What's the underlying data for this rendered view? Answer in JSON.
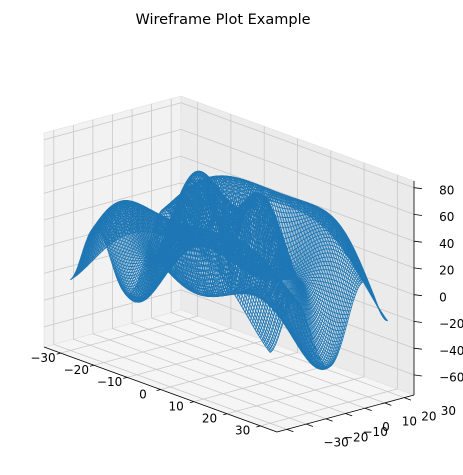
{
  "chart_data": {
    "type": "wireframe",
    "title": "Wireframe Plot Example",
    "x_ticks": [
      -30,
      -20,
      -10,
      0,
      10,
      20,
      30
    ],
    "y_ticks": [
      -30,
      -20,
      -10,
      0,
      10,
      20,
      30
    ],
    "z_ticks": [
      -60,
      -40,
      -20,
      0,
      20,
      40,
      60,
      80
    ],
    "x_ticks_text": [
      "−30",
      "−20",
      "−10",
      "0",
      "10",
      "20",
      "30"
    ],
    "y_ticks_text": [
      "−30",
      "−20",
      "−10",
      "0",
      "10",
      "20",
      "30"
    ],
    "z_ticks_text": [
      "−60",
      "−40",
      "−20",
      "0",
      "20",
      "40",
      "60",
      "80"
    ],
    "xlim": [
      -35,
      35
    ],
    "ylim": [
      -35,
      35
    ],
    "zlim": [
      -75,
      85
    ],
    "surface": {
      "x_range": [
        -30,
        30
      ],
      "y_range": [
        -30,
        30
      ],
      "steps": 121,
      "line_color": "#1f77b4"
    },
    "grid": true,
    "xlabel": "",
    "ylabel": "",
    "zlabel": ""
  },
  "colors": {
    "pane_left": "#f2f2f2",
    "pane_right": "#ebebeb",
    "pane_floor": "#f5f5f5",
    "grid": "#c8c8c8",
    "line": "#1f77b4"
  }
}
